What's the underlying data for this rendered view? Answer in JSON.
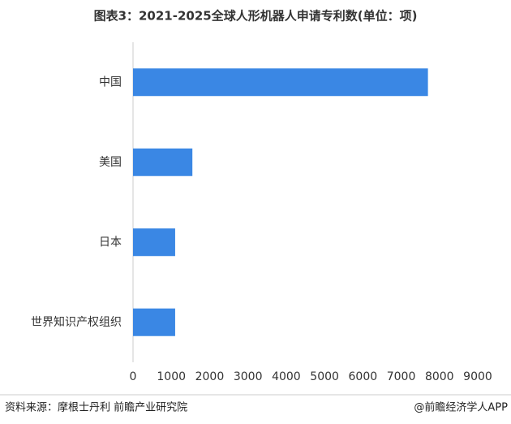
{
  "chart_data": {
    "type": "barh",
    "title": "图表3：2021-2025全球人形机器人申请专利数(单位：项)",
    "categories": [
      "中国",
      "美国",
      "日本",
      "世界知识产权组织"
    ],
    "values": [
      7700,
      1550,
      1100,
      1100
    ],
    "color": "#3a87e4",
    "xlim": [
      0,
      9000
    ],
    "xticks": [
      0,
      1000,
      2000,
      3000,
      4000,
      5000,
      6000,
      7000,
      8000,
      9000
    ]
  },
  "footer": {
    "source": "资料来源：摩根士丹利 前瞻产业研究院",
    "credit": "@前瞻经济学人APP"
  }
}
